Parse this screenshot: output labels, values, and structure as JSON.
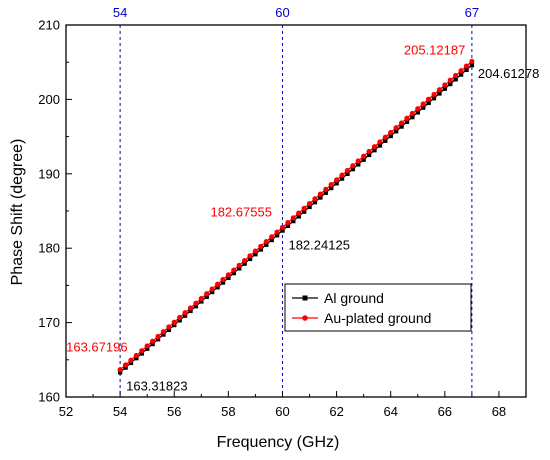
{
  "chart_data": {
    "type": "line",
    "xlabel": "Frequency (GHz)",
    "ylabel": "Phase Shift (degree)",
    "xlim": [
      52,
      69
    ],
    "ylim": [
      160,
      210
    ],
    "x_ticks": [
      52,
      54,
      56,
      58,
      60,
      62,
      64,
      66,
      68
    ],
    "y_ticks": [
      160,
      170,
      180,
      190,
      200,
      210
    ],
    "grid": false,
    "legend_position": "lower-right",
    "top_axis_ticks": [
      54,
      60,
      67
    ],
    "vertical_reference_lines": [
      54,
      60,
      67
    ],
    "x_start": 54,
    "x_end": 67,
    "x_step": 0.2,
    "series": [
      {
        "name": "Al ground",
        "color": "#000000",
        "marker": "square",
        "y_start": 163.31823,
        "y_end": 204.61278
      },
      {
        "name": "Au-plated ground",
        "color": "#ff0000",
        "marker": "circle",
        "y_start": 163.67196,
        "y_end": 205.12187
      }
    ],
    "annotations": [
      {
        "text": "163.67196",
        "x": 54,
        "y": 163.67196,
        "color": "#ff0000"
      },
      {
        "text": "163.31823",
        "x": 54,
        "y": 163.31823,
        "color": "#000000"
      },
      {
        "text": "182.67555",
        "x": 60,
        "y": 182.67555,
        "color": "#ff0000"
      },
      {
        "text": "182.24125",
        "x": 60,
        "y": 182.24125,
        "color": "#000000"
      },
      {
        "text": "205.12187",
        "x": 67,
        "y": 205.12187,
        "color": "#ff0000"
      },
      {
        "text": "204.61278",
        "x": 67,
        "y": 204.61278,
        "color": "#000000"
      }
    ],
    "colors": {
      "reference_line": "#0000cc",
      "top_tick_label": "#0000cc"
    }
  }
}
